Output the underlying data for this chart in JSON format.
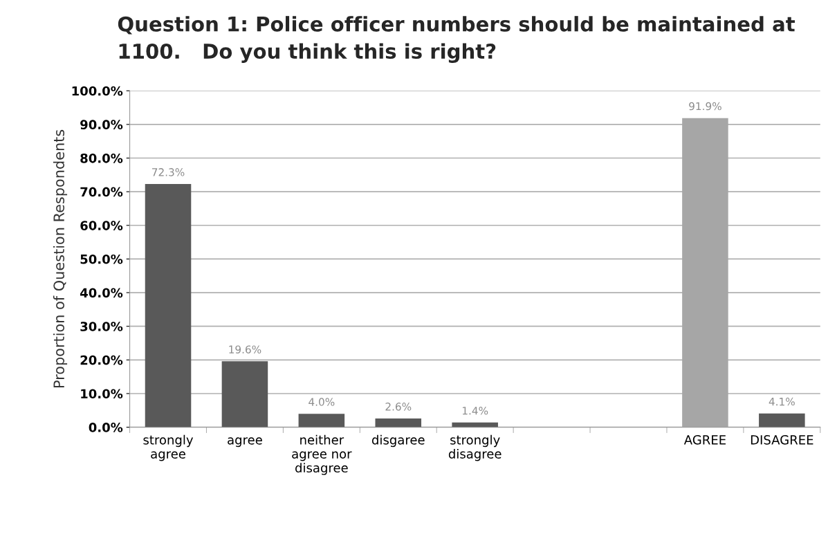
{
  "chart_data": {
    "type": "bar",
    "title": "Question 1: Police officer numbers should be maintained at\n1100.   Do you think this is right?",
    "ylabel": "Proportion of Question Respondents",
    "categories": [
      "strongly\nagree",
      "agree",
      "neither\nagree nor\ndisagree",
      "disgaree",
      "strongly\ndisagree",
      null,
      null,
      "AGREE",
      "DISAGREE"
    ],
    "values": [
      72.3,
      19.6,
      4.0,
      2.6,
      1.4,
      null,
      null,
      91.9,
      4.1
    ],
    "value_labels": [
      "72.3%",
      "19.6%",
      "4.0%",
      "2.6%",
      "1.4%",
      null,
      null,
      "91.9%",
      "4.1%"
    ],
    "colors": [
      "#595959",
      "#595959",
      "#595959",
      "#595959",
      "#595959",
      "#595959",
      "#595959",
      "#a6a6a6",
      "#595959"
    ],
    "ylim": [
      0,
      100
    ],
    "yticks": [
      {
        "value": 0,
        "label": "0.0%"
      },
      {
        "value": 10,
        "label": "10.0%"
      },
      {
        "value": 20,
        "label": "20.0%"
      },
      {
        "value": 30,
        "label": "30.0%"
      },
      {
        "value": 40,
        "label": "40.0%"
      },
      {
        "value": 50,
        "label": "50.0%"
      },
      {
        "value": 60,
        "label": "60.0%"
      },
      {
        "value": 70,
        "label": "70.0%"
      },
      {
        "value": 80,
        "label": "80.0%"
      },
      {
        "value": 90,
        "label": "90.0%"
      },
      {
        "value": 100,
        "label": "100.0%"
      }
    ],
    "grid": "y"
  }
}
